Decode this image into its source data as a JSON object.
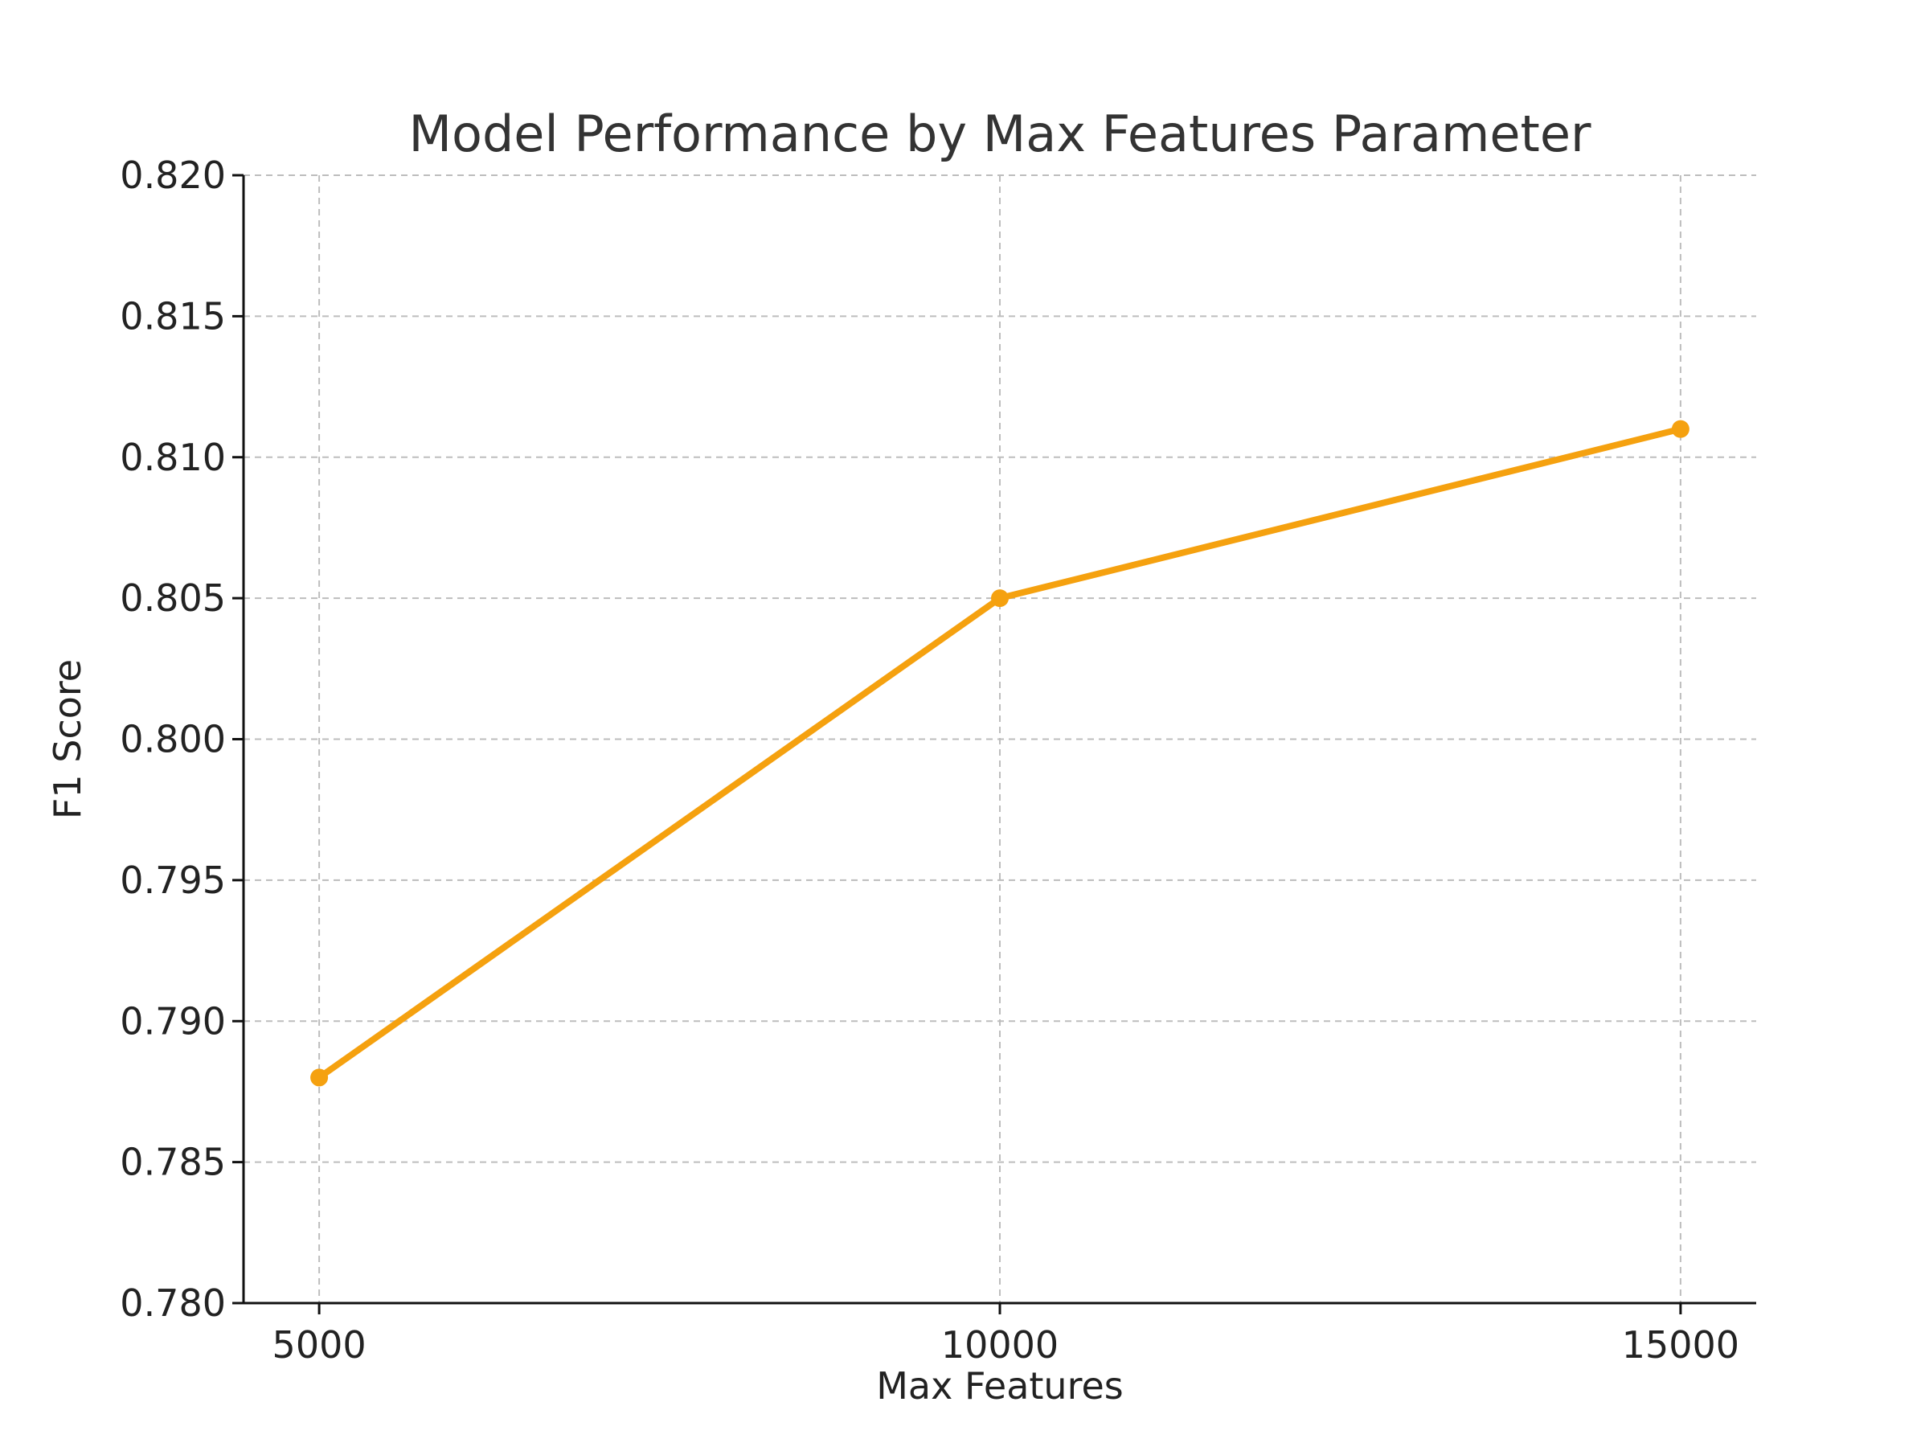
{
  "chart_data": {
    "type": "line",
    "title": "Model Performance by Max Features Parameter",
    "xlabel": "Max Features",
    "ylabel": "F1 Score",
    "x": [
      5000,
      10000,
      15000
    ],
    "x_tick_labels": [
      "5000",
      "10000",
      "15000"
    ],
    "series": [
      {
        "values": [
          0.788,
          0.805,
          0.811
        ],
        "color": "#f5a10f",
        "marker": "circle"
      }
    ],
    "ylim": [
      0.78,
      0.82
    ],
    "y_ticks": [
      0.78,
      0.785,
      0.79,
      0.795,
      0.8,
      0.805,
      0.81,
      0.815,
      0.82
    ],
    "y_tick_labels": [
      "0.780",
      "0.785",
      "0.790",
      "0.795",
      "0.800",
      "0.805",
      "0.810",
      "0.815",
      "0.820"
    ],
    "grid": true,
    "legend": "none"
  }
}
